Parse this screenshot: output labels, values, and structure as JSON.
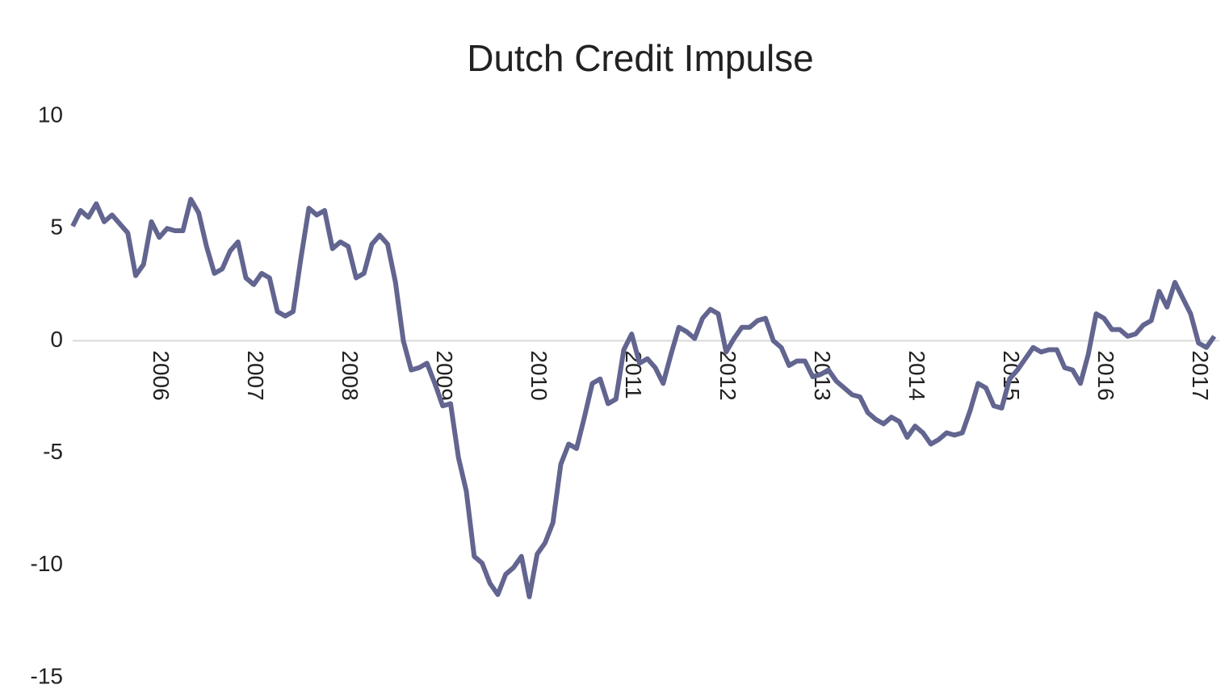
{
  "chart_data": {
    "type": "line",
    "title": "Dutch Credit Impulse",
    "categories": [
      null,
      null,
      null,
      null,
      null,
      null,
      null,
      null,
      null,
      null,
      null,
      "2006",
      null,
      null,
      null,
      null,
      null,
      null,
      null,
      null,
      null,
      null,
      null,
      "2007",
      null,
      null,
      null,
      null,
      null,
      null,
      null,
      null,
      null,
      null,
      null,
      "2008",
      null,
      null,
      null,
      null,
      null,
      null,
      null,
      null,
      null,
      null,
      null,
      "2009",
      null,
      null,
      null,
      null,
      null,
      null,
      null,
      null,
      null,
      null,
      null,
      "2010",
      null,
      null,
      null,
      null,
      null,
      null,
      null,
      null,
      null,
      null,
      null,
      "2011",
      null,
      null,
      null,
      null,
      null,
      null,
      null,
      null,
      null,
      null,
      null,
      "2012",
      null,
      null,
      null,
      null,
      null,
      null,
      null,
      null,
      null,
      null,
      null,
      "2013",
      null,
      null,
      null,
      null,
      null,
      null,
      null,
      null,
      null,
      null,
      null,
      "2014",
      null,
      null,
      null,
      null,
      null,
      null,
      null,
      null,
      null,
      null,
      null,
      "2015",
      null,
      null,
      null,
      null,
      null,
      null,
      null,
      null,
      null,
      null,
      null,
      "2016",
      null,
      null,
      null,
      null,
      null,
      null,
      null,
      null,
      null,
      null,
      null,
      "2017",
      null,
      null
    ],
    "series": [
      {
        "name": "Dutch Credit Impulse",
        "color": "#62658f",
        "values": [
          5.1,
          5.8,
          5.5,
          6.1,
          5.3,
          5.6,
          5.2,
          4.8,
          2.9,
          3.4,
          5.3,
          4.6,
          5.0,
          4.9,
          4.9,
          6.3,
          5.7,
          4.2,
          3.0,
          3.2,
          4.0,
          4.4,
          2.8,
          2.5,
          3.0,
          2.8,
          1.3,
          1.1,
          1.3,
          3.7,
          5.9,
          5.6,
          5.8,
          4.1,
          4.4,
          4.2,
          2.8,
          3.0,
          4.3,
          4.7,
          4.3,
          2.6,
          0.0,
          -1.3,
          -1.2,
          -1.0,
          -1.9,
          -2.9,
          -2.8,
          -5.2,
          -6.7,
          -9.6,
          -9.9,
          -10.8,
          -11.3,
          -10.4,
          -10.1,
          -9.6,
          -11.4,
          -9.5,
          -9.0,
          -8.1,
          -5.5,
          -4.6,
          -4.8,
          -3.4,
          -1.9,
          -1.7,
          -2.8,
          -2.6,
          -0.4,
          0.3,
          -1.0,
          -0.8,
          -1.2,
          -1.9,
          -0.6,
          0.6,
          0.4,
          0.1,
          1.0,
          1.4,
          1.2,
          -0.5,
          0.1,
          0.6,
          0.6,
          0.9,
          1.0,
          0.0,
          -0.3,
          -1.1,
          -0.9,
          -0.9,
          -1.6,
          -1.5,
          -1.3,
          -1.8,
          -2.1,
          -2.4,
          -2.5,
          -3.2,
          -3.5,
          -3.7,
          -3.4,
          -3.6,
          -4.3,
          -3.8,
          -4.1,
          -4.6,
          -4.4,
          -4.1,
          -4.2,
          -4.1,
          -3.1,
          -1.9,
          -2.1,
          -2.9,
          -3.0,
          -1.7,
          -1.3,
          -0.8,
          -0.3,
          -0.5,
          -0.4,
          -0.4,
          -1.2,
          -1.3,
          -1.9,
          -0.6,
          1.2,
          1.0,
          0.5,
          0.5,
          0.2,
          0.3,
          0.7,
          0.9,
          2.2,
          1.5,
          2.6,
          1.9,
          1.2,
          -0.1,
          -0.3,
          0.2
        ]
      }
    ],
    "ylim": [
      -15,
      10
    ],
    "yticks": [
      -15,
      -10,
      -5,
      0,
      5,
      10
    ],
    "grid": false
  }
}
